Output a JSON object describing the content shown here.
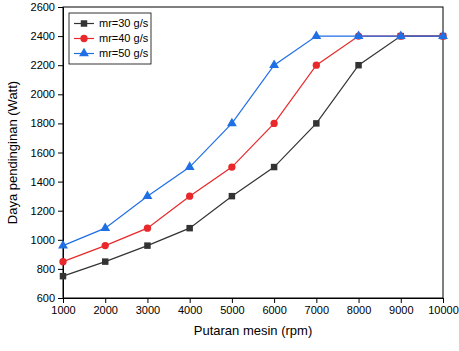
{
  "chart_data": {
    "type": "line",
    "x_label": "Putaran mesin (rpm)",
    "y_label": "Daya pendinginan (Watt)",
    "x": [
      1000,
      2000,
      3000,
      4000,
      5000,
      6000,
      7000,
      8000,
      9000,
      10000
    ],
    "series": [
      {
        "name": "mr=30 g/s",
        "color": "#333333",
        "marker": "square",
        "values": [
          750,
          850,
          960,
          1080,
          1300,
          1500,
          1800,
          2200,
          2400,
          2400
        ]
      },
      {
        "name": "mr=40 g/s",
        "color": "#e8282b",
        "marker": "circle",
        "values": [
          850,
          960,
          1080,
          1300,
          1500,
          1800,
          2200,
          2400,
          2400,
          2400
        ]
      },
      {
        "name": "mr=50 g/s",
        "color": "#1f6fe5",
        "marker": "triangle",
        "values": [
          960,
          1080,
          1300,
          1500,
          1800,
          2200,
          2400,
          2400,
          2400,
          2400
        ]
      }
    ],
    "xlim": [
      1000,
      10000
    ],
    "xticks": [
      1000,
      2000,
      3000,
      4000,
      5000,
      6000,
      7000,
      8000,
      9000,
      10000
    ],
    "ylim": [
      600,
      2600
    ],
    "yticks": [
      600,
      800,
      1000,
      1200,
      1400,
      1600,
      1800,
      2000,
      2200,
      2400,
      2600
    ],
    "grid": false,
    "legend": "upper left"
  }
}
